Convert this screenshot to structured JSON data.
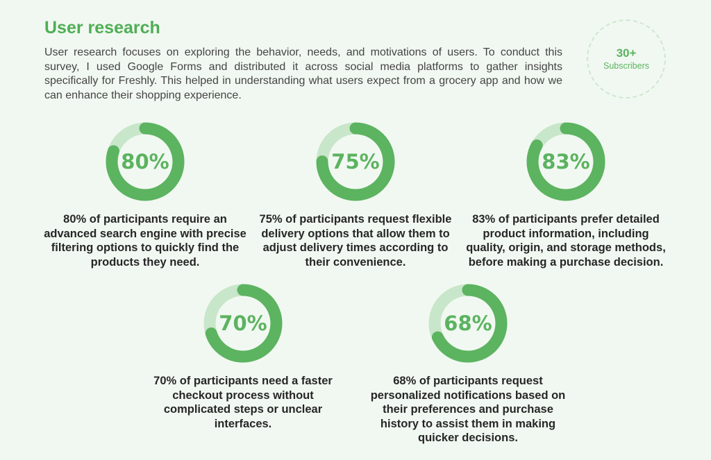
{
  "header": {
    "title": "User research",
    "intro": "User research focuses on exploring the behavior, needs, and motivations of users. To conduct this survey, I used Google Forms and distributed it across social media platforms to gather insights specifically for Freshly. This helped in understanding what users expect from a grocery app and how we can enhance their shopping experience."
  },
  "badge": {
    "count": "30+",
    "label": "Subscribers"
  },
  "colors": {
    "accent": "#5cb360",
    "track": "#c8e6c9",
    "title": "#4fae55"
  },
  "stats": [
    {
      "percent_label": "80%",
      "value": 80,
      "caption": "80% of participants require an advanced search engine with precise filtering options to quickly find the products they need."
    },
    {
      "percent_label": "75%",
      "value": 75,
      "caption": "75% of participants request flexible delivery options that allow them to adjust delivery times according to their convenience."
    },
    {
      "percent_label": "83%",
      "value": 83,
      "caption": "83% of participants prefer detailed product information, including quality, origin, and storage methods, before making a purchase decision."
    },
    {
      "percent_label": "70%",
      "value": 70,
      "caption": "70% of participants need a faster checkout process without complicated steps or unclear interfaces."
    },
    {
      "percent_label": "68%",
      "value": 68,
      "caption": "68% of participants request personalized notifications based on their preferences and purchase history to assist them in making quicker decisions."
    }
  ]
}
